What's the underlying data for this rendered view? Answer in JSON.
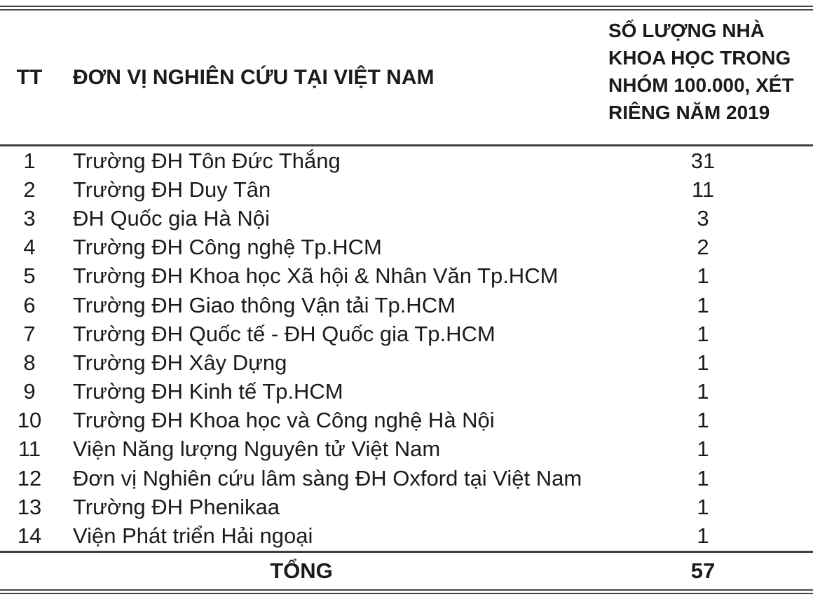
{
  "table": {
    "header": {
      "tt": "TT",
      "unit": "ĐƠN VỊ NGHIÊN CỨU TẠI VIỆT NAM",
      "count": "SỐ LƯỢNG NHÀ KHOA HỌC TRONG NHÓM 100.000, XÉT RIÊNG NĂM 2019"
    },
    "rows": [
      {
        "tt": "1",
        "unit": "Trường ĐH Tôn Đức Thắng",
        "count": "31"
      },
      {
        "tt": "2",
        "unit": "Trường ĐH Duy Tân",
        "count": "11"
      },
      {
        "tt": "3",
        "unit": "ĐH Quốc gia Hà Nội",
        "count": "3"
      },
      {
        "tt": "4",
        "unit": "Trường ĐH Công nghệ Tp.HCM",
        "count": "2"
      },
      {
        "tt": "5",
        "unit": "Trường ĐH Khoa học Xã hội & Nhân Văn Tp.HCM",
        "count": "1"
      },
      {
        "tt": "6",
        "unit": "Trường ĐH Giao thông Vận tải Tp.HCM",
        "count": "1"
      },
      {
        "tt": "7",
        "unit": "Trường ĐH Quốc tế - ĐH Quốc gia Tp.HCM",
        "count": "1"
      },
      {
        "tt": "8",
        "unit": "Trường ĐH Xây Dựng",
        "count": "1"
      },
      {
        "tt": "9",
        "unit": "Trường ĐH Kinh tế Tp.HCM",
        "count": "1"
      },
      {
        "tt": "10",
        "unit": "Trường ĐH Khoa học và Công nghệ Hà Nội",
        "count": "1"
      },
      {
        "tt": "11",
        "unit": "Viện Năng lượng Nguyên tử Việt Nam",
        "count": "1"
      },
      {
        "tt": "12",
        "unit": "Đơn vị Nghiên cứu lâm sàng ĐH Oxford tại Việt Nam",
        "count": "1"
      },
      {
        "tt": "13",
        "unit": "Trường ĐH Phenikaa",
        "count": "1"
      },
      {
        "tt": "14",
        "unit": "Viện Phát triển Hải ngoại",
        "count": "1"
      }
    ],
    "footer": {
      "label": "TỔNG",
      "total": "57"
    },
    "colors": {
      "text": "#1b1b1b",
      "border": "#3f3f3f"
    }
  }
}
